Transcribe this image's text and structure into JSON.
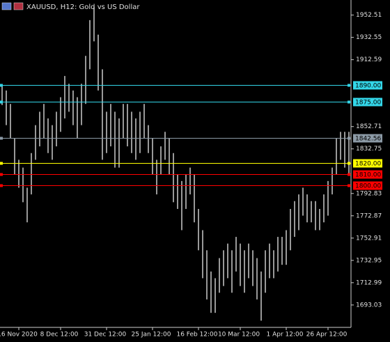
{
  "chart_data": {
    "type": "hilo",
    "title": "XAUUSD, H12:  Gold vs US Dollar",
    "color": "#ffffff",
    "categories": [
      null,
      null,
      null,
      null,
      "16 Nov 2020",
      null,
      null,
      null,
      null,
      null,
      null,
      null,
      null,
      null,
      "8 Dec 12:00",
      null,
      null,
      null,
      null,
      null,
      null,
      null,
      null,
      null,
      null,
      "31 Dec 12:00",
      null,
      null,
      null,
      null,
      null,
      null,
      null,
      null,
      null,
      null,
      "25 Jan 12:00",
      null,
      null,
      null,
      null,
      null,
      null,
      null,
      null,
      null,
      null,
      "16 Feb 12:00",
      null,
      null,
      null,
      null,
      null,
      null,
      null,
      null,
      null,
      "10 Mar 12:00",
      null,
      null,
      null,
      null,
      null,
      null,
      null,
      null,
      null,
      null,
      "1 Apr 12:00",
      null,
      null,
      null,
      null,
      null,
      null,
      null,
      null,
      null,
      "26 Apr 12:00",
      null,
      null,
      null,
      null,
      null
    ],
    "high": [
      1890,
      1885,
      1873,
      1842,
      1823,
      1816,
      1798,
      1829,
      1854,
      1866,
      1873,
      1860,
      1854,
      1866,
      1879,
      1898,
      1891,
      1885,
      1879,
      1891,
      1916,
      1948,
      1960,
      1935,
      1904,
      1866,
      1873,
      1866,
      1860,
      1873,
      1873,
      1866,
      1860,
      1866,
      1873,
      1854,
      1842,
      1823,
      1835,
      1848,
      1842,
      1829,
      1810,
      1804,
      1810,
      1816,
      1810,
      1779,
      1760,
      1742,
      1723,
      1717,
      1735,
      1742,
      1748,
      1742,
      1754,
      1748,
      1742,
      1748,
      1742,
      1735,
      1723,
      1742,
      1748,
      1742,
      1754,
      1754,
      1760,
      1779,
      1786,
      1792,
      1798,
      1792,
      1786,
      1786,
      1779,
      1792,
      1804,
      1816,
      1842,
      1848,
      1848,
      1848
    ],
    "low": [
      1872,
      1854,
      1842,
      1810,
      1798,
      1785,
      1767,
      1792,
      1823,
      1835,
      1842,
      1829,
      1823,
      1835,
      1848,
      1860,
      1866,
      1854,
      1842,
      1854,
      1873,
      1904,
      1929,
      1885,
      1823,
      1829,
      1835,
      1816,
      1816,
      1842,
      1835,
      1829,
      1823,
      1829,
      1842,
      1829,
      1810,
      1792,
      1810,
      1823,
      1810,
      1785,
      1779,
      1760,
      1779,
      1792,
      1767,
      1742,
      1717,
      1698,
      1686,
      1686,
      1704,
      1710,
      1717,
      1704,
      1723,
      1710,
      1704,
      1717,
      1710,
      1698,
      1679,
      1704,
      1717,
      1717,
      1723,
      1729,
      1729,
      1742,
      1754,
      1760,
      1773,
      1767,
      1767,
      1760,
      1760,
      1767,
      1773,
      1792,
      1810,
      1823,
      1816,
      1810
    ],
    "ylim": [
      1673,
      1966
    ],
    "yticks": [
      1952.51,
      1932.55,
      1912.59,
      1852.71,
      1832.75,
      1792.83,
      1772.87,
      1752.91,
      1732.95,
      1712.99,
      1693.03
    ],
    "levels": [
      {
        "value": 1890,
        "label": "1890.00",
        "color": "#33d6e8"
      },
      {
        "value": 1875,
        "label": "1875.00",
        "color": "#33d6e8"
      },
      {
        "value": 1842.56,
        "color": "#8c9aa6"
      },
      {
        "value": 1820,
        "label": "1820.00",
        "color": "#ffff00"
      },
      {
        "value": 1810,
        "label": "1810.00",
        "color": "#ff0000"
      },
      {
        "value": 1800,
        "label": "1800.00",
        "color": "#ff0000"
      }
    ]
  }
}
